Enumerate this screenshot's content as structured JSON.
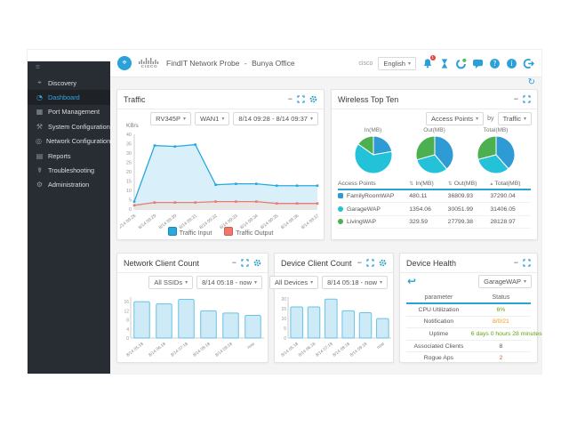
{
  "header": {
    "probe_title": "FindIT Network Probe",
    "separator": "-",
    "site": "Bunya Office",
    "logo_text": "CISCO",
    "brand_small": "cisco",
    "language": "English",
    "notification_count": "1",
    "accent_color": "#2b9fd9"
  },
  "sidebar": {
    "items": [
      {
        "label": "Discovery",
        "icon": "discovery-icon",
        "glyph": "⌖",
        "active": false
      },
      {
        "label": "Dashboard",
        "icon": "dashboard-icon",
        "glyph": "◔",
        "active": true
      },
      {
        "label": "Port Management",
        "icon": "ports-icon",
        "glyph": "▦",
        "active": false
      },
      {
        "label": "System Configuration",
        "icon": "system-config-icon",
        "glyph": "⚒",
        "active": false
      },
      {
        "label": "Network Configuration",
        "icon": "network-config-icon",
        "glyph": "◎",
        "active": false
      },
      {
        "label": "Reports",
        "icon": "reports-icon",
        "glyph": "▤",
        "active": false
      },
      {
        "label": "Troubleshooting",
        "icon": "troubleshooting-icon",
        "glyph": "☤",
        "active": false
      },
      {
        "label": "Administration",
        "icon": "administration-icon",
        "glyph": "⚙",
        "active": false
      }
    ]
  },
  "panels": {
    "traffic": {
      "title": "Traffic",
      "filters": {
        "device": "RV345P",
        "interface": "WAN1",
        "range": "8/14 09:28 - 8/14 09:37"
      }
    },
    "wireless": {
      "title": "Wireless Top Ten",
      "filters": {
        "entity": "Access Points",
        "by": "by",
        "metric": "Traffic"
      },
      "table": {
        "headers": [
          {
            "label": "Access Points",
            "sort": ""
          },
          {
            "label": "In(MB)",
            "sort": "⇅"
          },
          {
            "label": "Out(MB)",
            "sort": "⇅"
          },
          {
            "label": "Total(MB)",
            "sort": "▴"
          }
        ],
        "rows": [
          {
            "name": "FamilyRoomWAP",
            "color": "#2f9bd5",
            "marker": "square",
            "in": "480.11",
            "out": "36809.93",
            "total": "37290.04"
          },
          {
            "name": "GarageWAP",
            "color": "#23c2d8",
            "marker": "circle",
            "in": "1354.06",
            "out": "30051.99",
            "total": "31406.05"
          },
          {
            "name": "LivingWAP",
            "color": "#4caf50",
            "marker": "circle",
            "in": "329.59",
            "out": "27799.38",
            "total": "28128.97"
          }
        ]
      }
    },
    "network_clients": {
      "title": "Network Client Count",
      "filters": {
        "ssid": "All SSIDs",
        "range": "8/14 05:18 - now"
      }
    },
    "device_clients": {
      "title": "Device Client Count",
      "filters": {
        "device": "All Devices",
        "range": "8/14 05:18 - now"
      }
    },
    "device_health": {
      "title": "Device Health",
      "selector": "GarageWAP",
      "headers": [
        "parameter",
        "Status"
      ],
      "rows": [
        {
          "parameter": "CPU Utilization",
          "status": "6%",
          "status_color": "#61a50e"
        },
        {
          "parameter": "Notification",
          "status": "8/0/21",
          "status_color": "#f0960f"
        },
        {
          "parameter": "Uptime",
          "status": "6 days 0 hours 28 minutes",
          "status_color": "#61a50e"
        },
        {
          "parameter": "Associated Clients",
          "status": "8",
          "status_color": "#555555"
        },
        {
          "parameter": "Rogue Aps",
          "status": "2",
          "status_color": "#e0534a"
        }
      ]
    }
  },
  "chart_data": [
    {
      "id": "traffic",
      "type": "area",
      "title": "Traffic",
      "ylabel": "KB/s",
      "ylim": [
        0,
        40
      ],
      "yticks": [
        0,
        5,
        10,
        15,
        20,
        25,
        30,
        35,
        40
      ],
      "x": [
        "8/14 09:28",
        "8/14 09:29",
        "8/14 09:30",
        "8/14 09:31",
        "8/14 09:32",
        "8/14 09:33",
        "8/14 09:34",
        "8/14 09:35",
        "8/14 09:36",
        "8/14 09:37"
      ],
      "series": [
        {
          "name": "Traffic Input",
          "color": "#29a9df",
          "fill": "#d9f0fa",
          "values": [
            4,
            34,
            33.5,
            34.5,
            13,
            13.5,
            13.5,
            12.5,
            12.5,
            12.5
          ]
        },
        {
          "name": "Traffic Output",
          "color": "#e87c70",
          "fill": "#e6e6e6",
          "values": [
            2,
            3.5,
            3.5,
            3.5,
            4,
            4,
            4,
            3,
            3,
            3
          ]
        }
      ],
      "legend_position": "bottom"
    },
    {
      "id": "wireless-top-ten",
      "type": "pie",
      "labels": [
        "FamilyRoomWAP",
        "GarageWAP",
        "LivingWAP"
      ],
      "colors": [
        "#2f9bd5",
        "#23c2d8",
        "#4caf50"
      ],
      "pies": [
        {
          "title": "In(MB)",
          "values": [
            480.11,
            1354.06,
            329.59
          ]
        },
        {
          "title": "Out(MB)",
          "values": [
            36809.93,
            30051.99,
            27799.38
          ]
        },
        {
          "title": "Total(MB)",
          "values": [
            37290.04,
            31406.05,
            28128.97
          ]
        }
      ]
    },
    {
      "id": "network-client-count",
      "type": "bar",
      "title": "Network Client Count",
      "categories": [
        "8/14 05:18",
        "8/14 06:18",
        "8/14 07:18",
        "8/14 08:18",
        "8/14 09:18",
        "now"
      ],
      "values": [
        16,
        15,
        17,
        12,
        11,
        10
      ],
      "ylim": [
        0,
        18
      ],
      "yticks": [
        0,
        4,
        8,
        12,
        16
      ],
      "bar_fill": "#cfeaf7",
      "bar_stroke": "#66c4e4"
    },
    {
      "id": "device-client-count",
      "type": "bar",
      "title": "Device Client Count",
      "categories": [
        "8/14 05:18",
        "8/14 06:18",
        "8/14 07:18",
        "8/14 08:18",
        "8/14 09:18",
        "now"
      ],
      "values": [
        16,
        16,
        20,
        14,
        13,
        10
      ],
      "ylim": [
        0,
        21
      ],
      "yticks": [
        0,
        5,
        10,
        15,
        20
      ],
      "bar_fill": "#cfeaf7",
      "bar_stroke": "#66c4e4"
    }
  ]
}
